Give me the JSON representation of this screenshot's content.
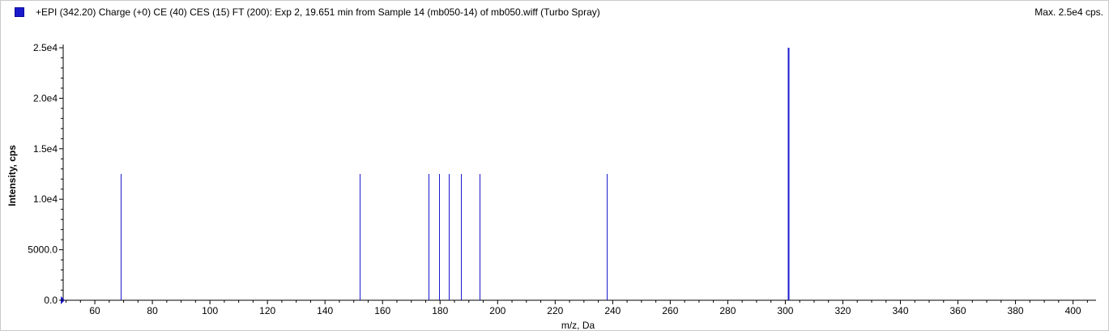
{
  "header": {
    "title": "+EPI (342.20) Charge (+0) CE (40) CES (15) FT (200): Exp 2, 19.651 min from Sample 14 (mb050-14) of mb050.wiff (Turbo Spray)",
    "max_label": "Max. 2.5e4 cps.",
    "series_color": "#1a1acc"
  },
  "chart_data": {
    "type": "bar",
    "title": "+EPI (342.20) Charge (+0) CE (40) CES (15) FT (200): Exp 2, 19.651 min from Sample 14 (mb050-14) of mb050.wiff (Turbo Spray)",
    "xlabel": "m/z, Da",
    "ylabel": "Intensity, cps",
    "xlim": [
      49,
      408
    ],
    "ylim": [
      0,
      25000
    ],
    "x_ticks": [
      60,
      80,
      100,
      120,
      140,
      160,
      180,
      200,
      220,
      240,
      260,
      280,
      300,
      320,
      340,
      360,
      380,
      400
    ],
    "x_tick_labels": [
      "60",
      "80",
      "100",
      "120",
      "140",
      "160",
      "180",
      "200",
      "220",
      "240",
      "260",
      "280",
      "300",
      "320",
      "340",
      "360",
      "380",
      "400"
    ],
    "y_ticks": [
      0,
      5000,
      10000,
      15000,
      20000,
      25000
    ],
    "y_tick_labels": [
      "0.0",
      "5000.0",
      "1.0e4",
      "1.5e4",
      "2.0e4",
      "2.5e4"
    ],
    "grid": false,
    "color": "#1a1acc",
    "series": [
      {
        "x": [
          69.0,
          152.1,
          176.1,
          179.6,
          183.1,
          187.2,
          193.8,
          238.0,
          301.0
        ],
        "values": [
          12500,
          12500,
          12500,
          12500,
          12500,
          12500,
          12500,
          12500,
          25000
        ]
      }
    ]
  }
}
